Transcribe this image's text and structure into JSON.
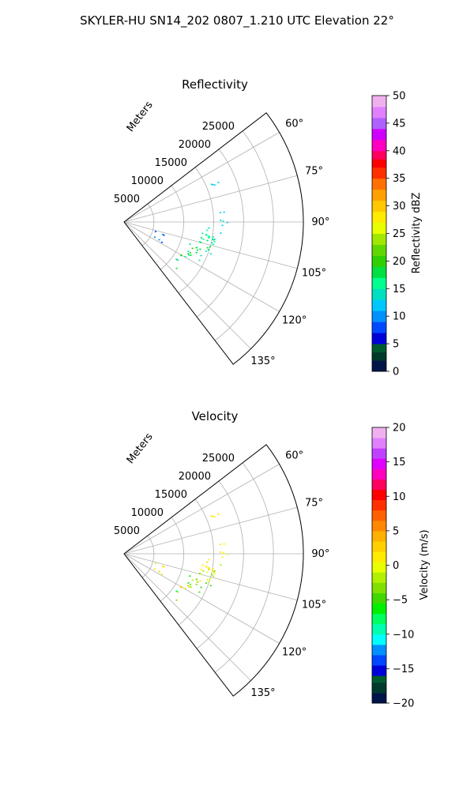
{
  "title": "SKYLER-HU  SN14_202  0807_1.210 UTC Elevation 22°",
  "chart_data": [
    {
      "type": "polar-sector",
      "title": "Reflectivity",
      "range_label": "Meters",
      "range_ticks": [
        5000,
        10000,
        15000,
        20000,
        25000
      ],
      "range_max": 30000,
      "azimuth_ticks": [
        "60°",
        "75°",
        "90°",
        "105°",
        "120°",
        "135°"
      ],
      "azimuth_tick_values": [
        60,
        75,
        90,
        105,
        120,
        135
      ],
      "azimuth_range": [
        52.5,
        142.5
      ],
      "grid": true,
      "colorbar": {
        "label": "Reflectivity dBZ",
        "range": [
          0,
          50
        ],
        "ticks": [
          "0",
          "5",
          "10",
          "15",
          "20",
          "25",
          "30",
          "35",
          "40",
          "45",
          "50"
        ],
        "tick_values": [
          0,
          5,
          10,
          15,
          20,
          25,
          30,
          35,
          40,
          45,
          50
        ],
        "colors": [
          [
            0,
            "#00144a"
          ],
          [
            2,
            "#003a2c"
          ],
          [
            3.5,
            "#005a30"
          ],
          [
            5,
            "#0000d8"
          ],
          [
            7,
            "#0048ff"
          ],
          [
            9,
            "#0090ff"
          ],
          [
            11,
            "#00c8ff"
          ],
          [
            13,
            "#00e0c0"
          ],
          [
            15,
            "#00ff90"
          ],
          [
            17,
            "#00e040"
          ],
          [
            19,
            "#30d000"
          ],
          [
            21,
            "#60d800"
          ],
          [
            23,
            "#a0e800"
          ],
          [
            25,
            "#e8ff00"
          ],
          [
            27,
            "#ffea00"
          ],
          [
            29,
            "#ffc800"
          ],
          [
            31,
            "#ffa000"
          ],
          [
            33,
            "#ff7000"
          ],
          [
            35,
            "#ff3000"
          ],
          [
            37,
            "#ff0000"
          ],
          [
            38.5,
            "#ff0060"
          ],
          [
            40,
            "#ff00c0"
          ],
          [
            42,
            "#d000ff"
          ],
          [
            44,
            "#b060ff"
          ],
          [
            46,
            "#e080ff"
          ],
          [
            48,
            "#f0b0f0"
          ],
          [
            50,
            "#ffe8ff"
          ]
        ]
      },
      "echo_regions": [
        {
          "az": [
            61.5,
            68
          ],
          "r": [
            15500,
            17200
          ],
          "value": 13
        },
        {
          "az": [
            83,
            93
          ],
          "r": [
            15500,
            17300
          ],
          "value": 13
        },
        {
          "az": [
            93,
            102
          ],
          "r": [
            13000,
            16200
          ],
          "value": 14
        },
        {
          "az": [
            100,
            110
          ],
          "r": [
            12200,
            15500
          ],
          "value": 16
        },
        {
          "az": [
            108,
            117
          ],
          "r": [
            11400,
            14000
          ],
          "value": 17
        },
        {
          "az": [
            116,
            124
          ],
          "r": [
            10800,
            12400
          ],
          "value": 17
        },
        {
          "az": [
            124,
            132
          ],
          "r": [
            10300,
            11600
          ],
          "value": 15
        },
        {
          "az": [
            106,
            118
          ],
          "r": [
            5000,
            7000
          ],
          "value": 10
        }
      ]
    },
    {
      "type": "polar-sector",
      "title": "Velocity",
      "range_label": "Meters",
      "range_ticks": [
        5000,
        10000,
        15000,
        20000,
        25000
      ],
      "range_max": 30000,
      "azimuth_ticks": [
        "60°",
        "75°",
        "90°",
        "105°",
        "120°",
        "135°"
      ],
      "azimuth_tick_values": [
        60,
        75,
        90,
        105,
        120,
        135
      ],
      "azimuth_range": [
        52.5,
        142.5
      ],
      "grid": true,
      "colorbar": {
        "label": "Velocity (m/s)",
        "range": [
          -20,
          20
        ],
        "ticks": [
          "−20",
          "−15",
          "−10",
          "−5",
          "0",
          "5",
          "10",
          "15",
          "20"
        ],
        "tick_values": [
          -20,
          -15,
          -10,
          -5,
          0,
          5,
          10,
          15,
          20
        ],
        "colors": [
          [
            -20,
            "#00144a"
          ],
          [
            -18.5,
            "#003a2c"
          ],
          [
            -17,
            "#005a30"
          ],
          [
            -16,
            "#0000d8"
          ],
          [
            -14.5,
            "#0048ff"
          ],
          [
            -13,
            "#0090ff"
          ],
          [
            -11.5,
            "#00ffff"
          ],
          [
            -10,
            "#00ffb0"
          ],
          [
            -8.5,
            "#00ff60"
          ],
          [
            -7,
            "#00f000"
          ],
          [
            -5.5,
            "#40d800"
          ],
          [
            -4,
            "#80e000"
          ],
          [
            -2.5,
            "#b0f000"
          ],
          [
            -1,
            "#e8ff00"
          ],
          [
            0.5,
            "#ffea00"
          ],
          [
            2,
            "#ffd000"
          ],
          [
            3.5,
            "#ffb000"
          ],
          [
            5,
            "#ff8800"
          ],
          [
            6.5,
            "#ff6000"
          ],
          [
            8,
            "#ff3000"
          ],
          [
            9.5,
            "#ff0000"
          ],
          [
            11,
            "#ff0060"
          ],
          [
            12.5,
            "#ff00c0"
          ],
          [
            14,
            "#e000ff"
          ],
          [
            15.5,
            "#c040ff"
          ],
          [
            17,
            "#e080ff"
          ],
          [
            18.5,
            "#f0b0f0"
          ],
          [
            20,
            "#ffe8ff"
          ]
        ]
      },
      "echo_regions": [
        {
          "az": [
            61.5,
            68
          ],
          "r": [
            15500,
            17200
          ],
          "value": 1
        },
        {
          "az": [
            83,
            93
          ],
          "r": [
            15500,
            17300
          ],
          "value": 1
        },
        {
          "az": [
            93,
            102
          ],
          "r": [
            13000,
            16200
          ],
          "value": 0
        },
        {
          "az": [
            100,
            110
          ],
          "r": [
            12200,
            15500
          ],
          "value": -2
        },
        {
          "az": [
            108,
            117
          ],
          "r": [
            11400,
            14000
          ],
          "value": -4
        },
        {
          "az": [
            116,
            124
          ],
          "r": [
            10800,
            12400
          ],
          "value": 2
        },
        {
          "az": [
            124,
            132
          ],
          "r": [
            10300,
            11600
          ],
          "value": -6
        },
        {
          "az": [
            106,
            118
          ],
          "r": [
            5000,
            7000
          ],
          "value": 2
        }
      ]
    }
  ]
}
